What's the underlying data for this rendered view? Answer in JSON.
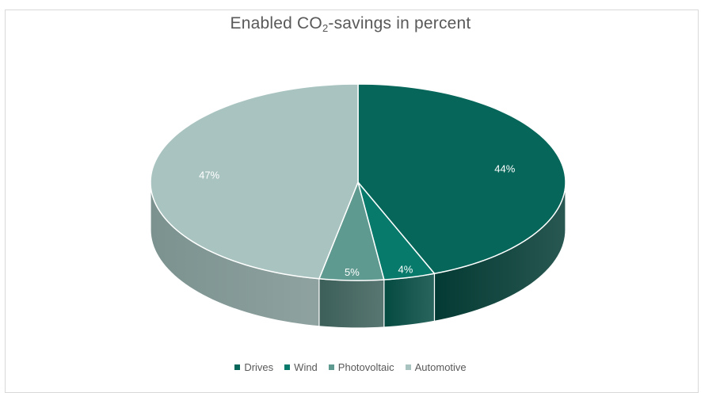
{
  "chart_data": {
    "type": "pie",
    "title_main": "Enabled CO",
    "title_sub": "2",
    "title_rest": "-savings in percent",
    "categories": [
      "Drives",
      "Wind",
      "Photovoltaic",
      "Automotive"
    ],
    "values": [
      44,
      4,
      5,
      47
    ],
    "labels": [
      "44%",
      "4%",
      "5%",
      "47%"
    ],
    "colors": [
      "#06665a",
      "#087a6b",
      "#5f9a90",
      "#a9c4c0"
    ],
    "side_colors": [
      "#033a33",
      "#044a41",
      "#3c5f59",
      "#7b928f"
    ],
    "legend_placement": "bottom",
    "style": "3d"
  }
}
